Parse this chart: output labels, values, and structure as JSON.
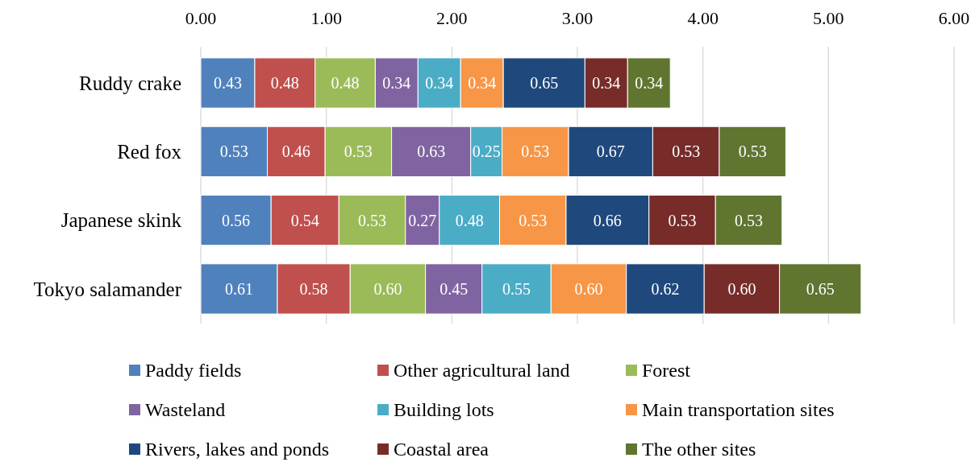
{
  "chart_data": {
    "type": "bar",
    "orientation": "horizontal",
    "stacked": true,
    "categories": [
      "Ruddy crake",
      "Red fox",
      "Japanese skink",
      "Tokyo salamander"
    ],
    "xlim": [
      0,
      6
    ],
    "xticks": [
      {
        "value": 0,
        "label": "0.00"
      },
      {
        "value": 1,
        "label": "1.00"
      },
      {
        "value": 2,
        "label": "2.00"
      },
      {
        "value": 3,
        "label": "3.00"
      },
      {
        "value": 4,
        "label": "4.00"
      },
      {
        "value": 5,
        "label": "5.00"
      },
      {
        "value": 6,
        "label": "6.00"
      }
    ],
    "grid": "x",
    "legend": "bottom",
    "series": [
      {
        "name": "Paddy fields",
        "color": "#4f81bd",
        "values": [
          0.43,
          0.53,
          0.56,
          0.61
        ],
        "value_labels": [
          "0.43",
          "0.53",
          "0.56",
          "0.61"
        ]
      },
      {
        "name": "Other agricultural land",
        "color": "#c0504d",
        "values": [
          0.48,
          0.46,
          0.54,
          0.58
        ],
        "value_labels": [
          "0.48",
          "0.46",
          "0.54",
          "0.58"
        ]
      },
      {
        "name": "Forest",
        "color": "#9bbb59",
        "values": [
          0.48,
          0.53,
          0.53,
          0.6
        ],
        "value_labels": [
          "0.48",
          "0.53",
          "0.53",
          "0.60"
        ]
      },
      {
        "name": "Wasteland",
        "color": "#8064a2",
        "values": [
          0.34,
          0.63,
          0.27,
          0.45
        ],
        "value_labels": [
          "0.34",
          "0.63",
          "0.27",
          "0.45"
        ]
      },
      {
        "name": "Building lots",
        "color": "#4bacc6",
        "values": [
          0.34,
          0.25,
          0.48,
          0.55
        ],
        "value_labels": [
          "0.34",
          "0.25",
          "0.48",
          "0.55"
        ]
      },
      {
        "name": "Main transportation sites",
        "color": "#f79646",
        "values": [
          0.34,
          0.53,
          0.53,
          0.6
        ],
        "value_labels": [
          "0.34",
          "0.53",
          "0.53",
          "0.60"
        ]
      },
      {
        "name": "Rivers, lakes and ponds",
        "color": "#1f497d",
        "values": [
          0.65,
          0.67,
          0.66,
          0.62
        ],
        "value_labels": [
          "0.65",
          "0.67",
          "0.66",
          "0.62"
        ]
      },
      {
        "name": "Coastal area",
        "color": "#772c2a",
        "values": [
          0.34,
          0.53,
          0.53,
          0.6
        ],
        "value_labels": [
          "0.34",
          "0.53",
          "0.53",
          "0.60"
        ]
      },
      {
        "name": "The other sites",
        "color": "#5f7530",
        "values": [
          0.34,
          0.53,
          0.53,
          0.65
        ],
        "value_labels": [
          "0.34",
          "0.53",
          "0.53",
          "0.65"
        ]
      }
    ]
  }
}
